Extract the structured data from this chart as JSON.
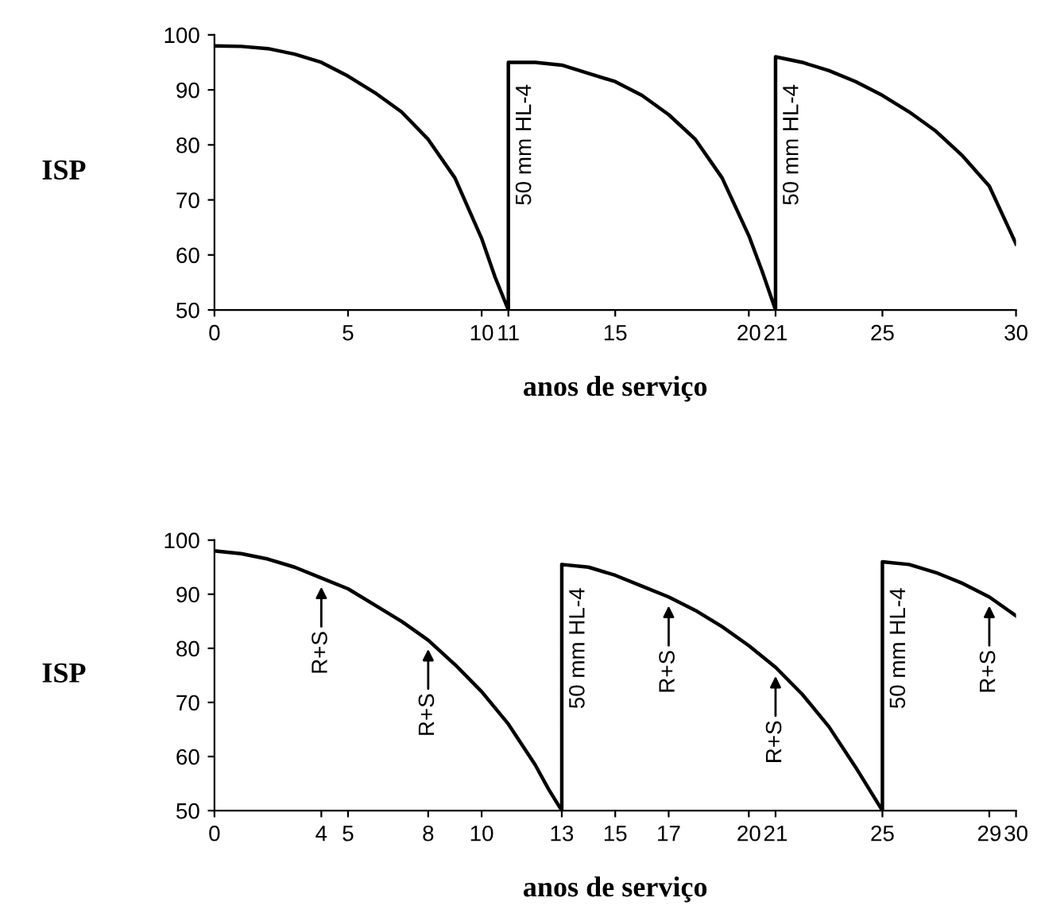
{
  "chart_data": [
    {
      "type": "line",
      "ylabel": "ISP",
      "xlabel": "anos de serviço",
      "xlim": [
        0,
        30
      ],
      "ylim": [
        50,
        100
      ],
      "xticks": [
        0,
        5,
        10,
        11,
        15,
        20,
        21,
        25,
        30
      ],
      "yticks": [
        50,
        60,
        70,
        80,
        90,
        100
      ],
      "grid": false,
      "legend": false,
      "marker": "none",
      "line_style": "solid",
      "series": [
        {
          "color": "#000000",
          "x": [
            0,
            1,
            2,
            3,
            4,
            5,
            6,
            7,
            8,
            9,
            10,
            10.5,
            11,
            11,
            12,
            13,
            14,
            15,
            16,
            17,
            18,
            19,
            20,
            20.5,
            21,
            21,
            22,
            23,
            24,
            25,
            26,
            27,
            28,
            29,
            30
          ],
          "values": [
            98,
            97.9,
            97.5,
            96.5,
            95,
            92.5,
            89.5,
            86,
            81,
            74,
            63,
            56,
            50,
            95,
            95,
            94.5,
            93,
            91.5,
            89,
            85.5,
            81,
            74,
            63.5,
            57,
            50,
            96,
            95,
            93.5,
            91.5,
            89,
            86,
            82.5,
            78,
            72.5,
            62
          ]
        }
      ],
      "annotations": [
        {
          "text": "50 mm HL-4",
          "x": 11,
          "y": 80
        },
        {
          "text": "50 mm HL-4",
          "x": 21,
          "y": 80
        }
      ]
    },
    {
      "type": "line",
      "ylabel": "ISP",
      "xlabel": "anos de serviço",
      "xlim": [
        0,
        30
      ],
      "ylim": [
        50,
        100
      ],
      "xticks": [
        0,
        4,
        5,
        8,
        10,
        13,
        15,
        17,
        20,
        21,
        25,
        29,
        30
      ],
      "yticks": [
        50,
        60,
        70,
        80,
        90,
        100
      ],
      "grid": false,
      "legend": false,
      "marker": "none",
      "line_style": "solid",
      "series": [
        {
          "color": "#000000",
          "x": [
            0,
            1,
            2,
            3,
            4,
            5,
            6,
            7,
            8,
            9,
            10,
            11,
            12,
            12.5,
            13,
            13,
            14,
            15,
            16,
            17,
            18,
            19,
            20,
            21,
            22,
            23,
            24,
            25,
            25,
            26,
            27,
            28,
            29,
            30
          ],
          "values": [
            98,
            97.5,
            96.5,
            95,
            93,
            91,
            88,
            85,
            81.5,
            77,
            72,
            66,
            58.5,
            54,
            50,
            95.5,
            95,
            93.5,
            91.5,
            89.5,
            87,
            84,
            80.5,
            76.5,
            71.5,
            65.5,
            58,
            50,
            96,
            95.5,
            94,
            92,
            89.5,
            86
          ]
        }
      ],
      "annotations": [
        {
          "text": "R+S",
          "x": 4,
          "y": 93
        },
        {
          "text": "R+S",
          "x": 8,
          "y": 81.5
        },
        {
          "text": "50 mm HL-4",
          "x": 13,
          "y": 80
        },
        {
          "text": "R+S",
          "x": 17,
          "y": 89.5
        },
        {
          "text": "R+S",
          "x": 21,
          "y": 76.5
        },
        {
          "text": "50 mm HL-4",
          "x": 25,
          "y": 80
        },
        {
          "text": "R+S",
          "x": 29,
          "y": 89.5
        }
      ]
    }
  ]
}
